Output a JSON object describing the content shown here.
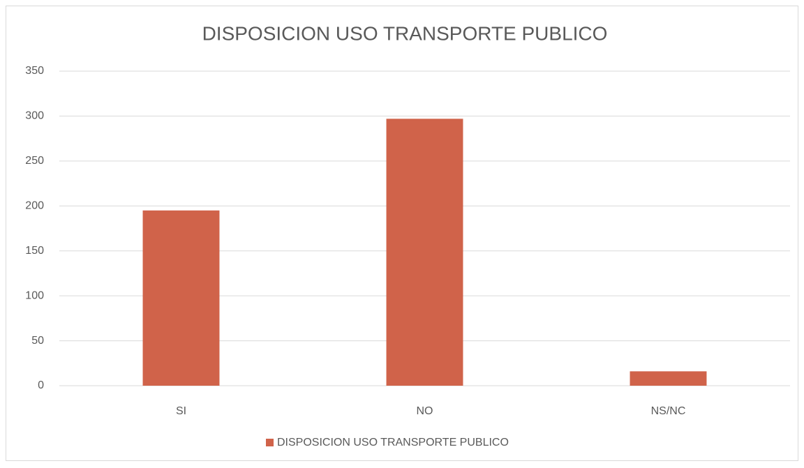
{
  "chart_data": {
    "type": "bar",
    "title": "DISPOSICION USO TRANSPORTE PUBLICO",
    "categories": [
      "SI",
      "NO",
      "NS/NC"
    ],
    "series": [
      {
        "name": "DISPOSICION USO TRANSPORTE PUBLICO",
        "color": "#d0634a",
        "values": [
          195,
          297,
          16
        ]
      }
    ],
    "ylim": [
      0,
      350
    ],
    "yticks": [
      0,
      50,
      100,
      150,
      200,
      250,
      300,
      350
    ],
    "grid": true,
    "legend": "bottom"
  }
}
